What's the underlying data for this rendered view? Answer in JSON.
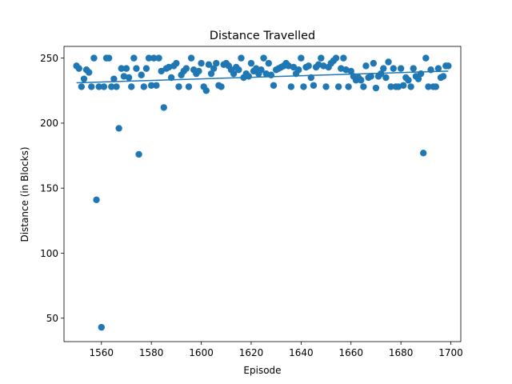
{
  "chart_data": {
    "type": "scatter",
    "title": "Distance Travelled",
    "xlabel": "Episode",
    "ylabel": "Distance (in Blocks)",
    "xlim": [
      1545,
      1704
    ],
    "ylim": [
      32,
      259
    ],
    "xticks": [
      1560,
      1580,
      1600,
      1620,
      1640,
      1660,
      1680,
      1700
    ],
    "yticks": [
      50,
      100,
      150,
      200,
      250
    ],
    "grid": false,
    "marker_color": "#1f77b4",
    "trend_color": "#1f77b4",
    "trendline": {
      "x": [
        1550,
        1699
      ],
      "y": [
        231,
        240
      ]
    },
    "series": [
      {
        "x": [
          1550,
          1551,
          1552,
          1553,
          1554,
          1555,
          1556,
          1557,
          1558,
          1559,
          1560,
          1561,
          1562,
          1563,
          1564,
          1565,
          1566,
          1567,
          1568,
          1569,
          1570,
          1571,
          1572,
          1573,
          1574,
          1575,
          1576,
          1577,
          1578,
          1579,
          1580,
          1581,
          1582,
          1583,
          1584,
          1585,
          1586,
          1587,
          1588,
          1589,
          1590,
          1591,
          1592,
          1593,
          1594,
          1595,
          1596,
          1597,
          1598,
          1599,
          1600,
          1601,
          1602,
          1603,
          1604,
          1605,
          1606,
          1607,
          1608,
          1609,
          1610,
          1611,
          1612,
          1613,
          1614,
          1615,
          1616,
          1617,
          1618,
          1619,
          1620,
          1621,
          1622,
          1623,
          1624,
          1625,
          1626,
          1627,
          1628,
          1629,
          1630,
          1631,
          1632,
          1633,
          1634,
          1635,
          1636,
          1637,
          1638,
          1639,
          1640,
          1641,
          1642,
          1643,
          1644,
          1645,
          1646,
          1647,
          1648,
          1649,
          1650,
          1651,
          1652,
          1653,
          1654,
          1655,
          1656,
          1657,
          1658,
          1659,
          1660,
          1661,
          1662,
          1663,
          1664,
          1665,
          1666,
          1667,
          1668,
          1669,
          1670,
          1671,
          1672,
          1673,
          1674,
          1675,
          1676,
          1677,
          1678,
          1679,
          1680,
          1681,
          1682,
          1683,
          1684,
          1685,
          1686,
          1687,
          1688,
          1689,
          1690,
          1691,
          1692,
          1693,
          1694,
          1695,
          1696,
          1697,
          1698,
          1699
        ],
        "y": [
          244,
          242,
          228,
          234,
          241,
          239,
          228,
          250,
          141,
          228,
          43,
          228,
          250,
          250,
          228,
          234,
          228,
          196,
          242,
          236,
          242,
          235,
          228,
          250,
          242,
          176,
          237,
          228,
          242,
          250,
          229,
          250,
          229,
          250,
          240,
          212,
          242,
          243,
          235,
          244,
          246,
          228,
          237,
          240,
          242,
          228,
          250,
          241,
          238,
          240,
          246,
          228,
          225,
          245,
          238,
          242,
          246,
          229,
          228,
          245,
          246,
          244,
          241,
          238,
          243,
          241,
          250,
          235,
          238,
          236,
          246,
          240,
          242,
          238,
          241,
          250,
          238,
          246,
          237,
          229,
          241,
          242,
          243,
          244,
          246,
          244,
          228,
          243,
          238,
          241,
          250,
          228,
          243,
          244,
          235,
          229,
          243,
          245,
          250,
          244,
          228,
          243,
          246,
          248,
          250,
          228,
          242,
          250,
          241,
          228,
          240,
          236,
          233,
          235,
          233,
          228,
          244,
          235,
          236,
          246,
          227,
          236,
          238,
          242,
          235,
          247,
          228,
          242,
          228,
          228,
          242,
          229,
          235,
          233,
          228,
          242,
          236,
          234,
          238,
          177,
          250,
          228,
          241,
          228,
          228,
          242,
          235,
          236,
          244,
          244
        ]
      }
    ]
  }
}
